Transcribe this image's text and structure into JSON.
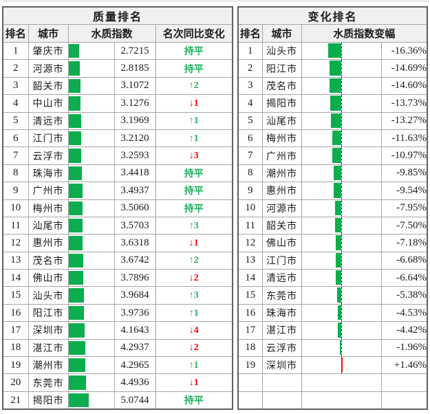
{
  "colors": {
    "bar_green": "#0cad4e",
    "bar_red": "#fe0000",
    "text_green": "#1db15c",
    "text_red": "#fe0000",
    "grid": "#a6a6a6",
    "outer_border": "#5f5f5f",
    "header_bg": "#f0f0f0"
  },
  "chart_data": [
    {
      "type": "table",
      "title": "质量排名",
      "columns": [
        "排名",
        "城市",
        "水质指数",
        "名次同比变化"
      ],
      "bar_axis_max": 11.5,
      "bar_color": "#0cad4e",
      "rows": [
        {
          "rank": "1",
          "city": "肇庆市",
          "index": 2.7215,
          "index_text": "2.7215",
          "change": "持平",
          "change_dir": "flat"
        },
        {
          "rank": "2",
          "city": "河源市",
          "index": 2.8185,
          "index_text": "2.8185",
          "change": "持平",
          "change_dir": "flat"
        },
        {
          "rank": "3",
          "city": "韶关市",
          "index": 3.1072,
          "index_text": "3.1072",
          "change": "↑2",
          "change_dir": "up"
        },
        {
          "rank": "4",
          "city": "中山市",
          "index": 3.1276,
          "index_text": "3.1276",
          "change": "↓1",
          "change_dir": "down"
        },
        {
          "rank": "5",
          "city": "清远市",
          "index": 3.1969,
          "index_text": "3.1969",
          "change": "↑1",
          "change_dir": "up"
        },
        {
          "rank": "6",
          "city": "江门市",
          "index": 3.212,
          "index_text": "3.2120",
          "change": "↑1",
          "change_dir": "up"
        },
        {
          "rank": "7",
          "city": "云浮市",
          "index": 3.2593,
          "index_text": "3.2593",
          "change": "↓3",
          "change_dir": "down"
        },
        {
          "rank": "8",
          "city": "珠海市",
          "index": 3.4418,
          "index_text": "3.4418",
          "change": "持平",
          "change_dir": "flat"
        },
        {
          "rank": "9",
          "city": "广州市",
          "index": 3.4937,
          "index_text": "3.4937",
          "change": "持平",
          "change_dir": "flat"
        },
        {
          "rank": "10",
          "city": "梅州市",
          "index": 3.506,
          "index_text": "3.5060",
          "change": "持平",
          "change_dir": "flat"
        },
        {
          "rank": "11",
          "city": "汕尾市",
          "index": 3.5703,
          "index_text": "3.5703",
          "change": "↑3",
          "change_dir": "up"
        },
        {
          "rank": "12",
          "city": "惠州市",
          "index": 3.6318,
          "index_text": "3.6318",
          "change": "↓1",
          "change_dir": "down"
        },
        {
          "rank": "13",
          "city": "茂名市",
          "index": 3.6742,
          "index_text": "3.6742",
          "change": "↑2",
          "change_dir": "up"
        },
        {
          "rank": "14",
          "city": "佛山市",
          "index": 3.7896,
          "index_text": "3.7896",
          "change": "↓2",
          "change_dir": "down"
        },
        {
          "rank": "15",
          "city": "汕头市",
          "index": 3.9684,
          "index_text": "3.9684",
          "change": "↑3",
          "change_dir": "up"
        },
        {
          "rank": "16",
          "city": "阳江市",
          "index": 3.9736,
          "index_text": "3.9736",
          "change": "↑1",
          "change_dir": "up"
        },
        {
          "rank": "17",
          "city": "深圳市",
          "index": 4.1643,
          "index_text": "4.1643",
          "change": "↓4",
          "change_dir": "down"
        },
        {
          "rank": "18",
          "city": "湛江市",
          "index": 4.2937,
          "index_text": "4.2937",
          "change": "↓2",
          "change_dir": "down"
        },
        {
          "rank": "19",
          "city": "潮州市",
          "index": 4.2965,
          "index_text": "4.2965",
          "change": "↑1",
          "change_dir": "up"
        },
        {
          "rank": "20",
          "city": "东莞市",
          "index": 4.4936,
          "index_text": "4.4936",
          "change": "↓1",
          "change_dir": "down"
        },
        {
          "rank": "21",
          "city": "揭阳市",
          "index": 5.0744,
          "index_text": "5.0744",
          "change": "持平",
          "change_dir": "flat"
        }
      ]
    },
    {
      "type": "table",
      "title": "变化排名",
      "columns": [
        "排名",
        "城市",
        "水质指数变幅"
      ],
      "axis_position_pct": 50,
      "bar_scale_abs_max_pct": 50,
      "negative_bar_color": "#0cad4e",
      "positive_bar_color": "#fe0000",
      "trailing_empty_rows": 2,
      "rows": [
        {
          "rank": "1",
          "city": "汕头市",
          "delta": -16.36,
          "delta_text": "-16.36%"
        },
        {
          "rank": "2",
          "city": "阳江市",
          "delta": -14.69,
          "delta_text": "-14.69%"
        },
        {
          "rank": "3",
          "city": "茂名市",
          "delta": -14.6,
          "delta_text": "-14.60%"
        },
        {
          "rank": "4",
          "city": "揭阳市",
          "delta": -13.73,
          "delta_text": "-13.73%"
        },
        {
          "rank": "5",
          "city": "汕尾市",
          "delta": -13.27,
          "delta_text": "-13.27%"
        },
        {
          "rank": "6",
          "city": "梅州市",
          "delta": -11.63,
          "delta_text": "-11.63%"
        },
        {
          "rank": "7",
          "city": "广州市",
          "delta": -10.97,
          "delta_text": "-10.97%"
        },
        {
          "rank": "8",
          "city": "潮州市",
          "delta": -9.85,
          "delta_text": "-9.85%"
        },
        {
          "rank": "9",
          "city": "惠州市",
          "delta": -9.54,
          "delta_text": "-9.54%"
        },
        {
          "rank": "10",
          "city": "河源市",
          "delta": -7.95,
          "delta_text": "-7.95%"
        },
        {
          "rank": "11",
          "city": "韶关市",
          "delta": -7.5,
          "delta_text": "-7.50%"
        },
        {
          "rank": "12",
          "city": "佛山市",
          "delta": -7.18,
          "delta_text": "-7.18%"
        },
        {
          "rank": "13",
          "city": "江门市",
          "delta": -6.68,
          "delta_text": "-6.68%"
        },
        {
          "rank": "14",
          "city": "清远市",
          "delta": -6.64,
          "delta_text": "-6.64%"
        },
        {
          "rank": "15",
          "city": "东莞市",
          "delta": -5.38,
          "delta_text": "-5.38%"
        },
        {
          "rank": "16",
          "city": "珠海市",
          "delta": -4.53,
          "delta_text": "-4.53%"
        },
        {
          "rank": "17",
          "city": "湛江市",
          "delta": -4.42,
          "delta_text": "-4.42%"
        },
        {
          "rank": "18",
          "city": "云浮市",
          "delta": -1.96,
          "delta_text": "-1.96%"
        },
        {
          "rank": "19",
          "city": "深圳市",
          "delta": 1.46,
          "delta_text": "+1.46%"
        }
      ]
    }
  ]
}
